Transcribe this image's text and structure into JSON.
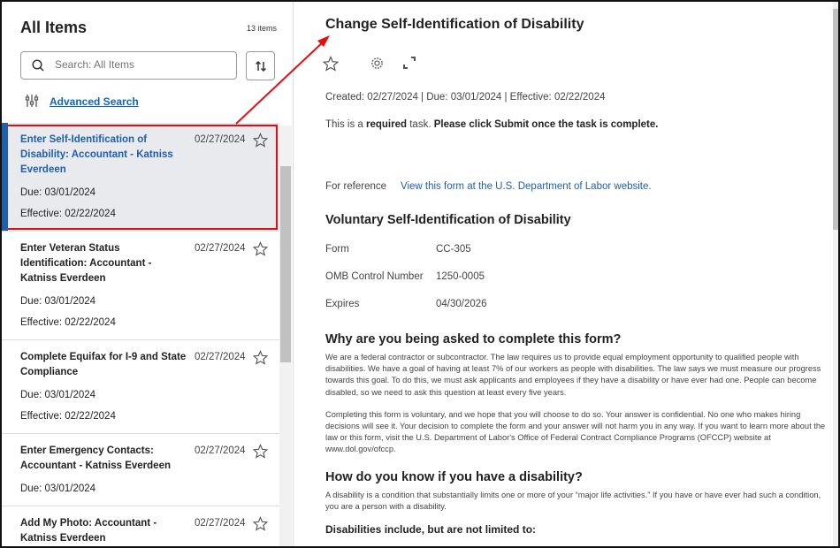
{
  "left": {
    "title": "All Items",
    "count": "13 items",
    "search_placeholder": "Search: All Items",
    "advanced_search": "Advanced Search",
    "items": [
      {
        "title": "Enter Self-Identification of Disability: Accountant - Katniss Everdeen",
        "date": "02/27/2024",
        "due": "Due: 03/01/2024",
        "effective": "Effective: 02/22/2024",
        "selected": true
      },
      {
        "title": "Enter Veteran Status Identification: Accountant - Katniss Everdeen",
        "date": "02/27/2024",
        "due": "Due: 03/01/2024",
        "effective": "Effective: 02/22/2024"
      },
      {
        "title": "Complete Equifax for I-9 and State Compliance",
        "date": "02/27/2024",
        "due": "Due: 03/01/2024",
        "effective": "Effective: 02/22/2024"
      },
      {
        "title": "Enter Emergency Contacts: Accountant - Katniss Everdeen",
        "date": "02/27/2024",
        "due": "Due: 03/01/2024"
      },
      {
        "title": "Add My Photo: Accountant - Katniss Everdeen",
        "date": "02/27/2024"
      }
    ]
  },
  "main": {
    "title": "Change Self-Identification of Disability",
    "meta": "Created: 02/27/2024 | Due: 03/01/2024 | Effective: 02/22/2024",
    "req_1": "This is a ",
    "req_bold": "required",
    "req_2": " task. ",
    "req_bold2": "Please click Submit once the task is complete.",
    "ref_label": "For reference",
    "ref_link": "View this form at the U.S. Department of Labor website.",
    "form_title": "Voluntary Self-Identification of Disability",
    "fields": [
      {
        "label": "Form",
        "value": "CC-305"
      },
      {
        "label": "OMB Control Number",
        "value": "1250-0005"
      },
      {
        "label": "Expires",
        "value": "04/30/2026"
      }
    ],
    "why_heading": "Why are you being asked to complete this form?",
    "why_p1": "We are a federal contractor or subcontractor. The law requires us to provide equal employment opportunity to qualified people with disabilities. We have a goal of having at least 7% of our workers as people with disabilities. The law says we must measure our progress towards this goal. To do this, we must ask applicants and employees if they have a disability or have ever had one. People can become disabled, so we need to ask this question at least every five years.",
    "why_p2": "Completing this form is voluntary, and we hope that you will choose to do so. Your answer is confidential. No one who makes hiring decisions will see it. Your decision to complete the form and your answer will not harm you in any way. If you want to learn more about the law or this form, visit the U.S. Department of Labor's Office of Federal Contract Compliance Programs (OFCCP) website at www.dol.gov/ofccp.",
    "how_heading": "How do you know if you have a disability?",
    "how_p1": "A disability is a condition that substantially limits one or more of your “major life activities.” If you have or have ever had such a condition, you are a person with a disability.",
    "cut_heading": "Disabilities include, but are not limited to:"
  },
  "colors": {
    "accent": "#1f5fae",
    "annotation": "#e01010",
    "selected_bg": "#e8eaed"
  }
}
